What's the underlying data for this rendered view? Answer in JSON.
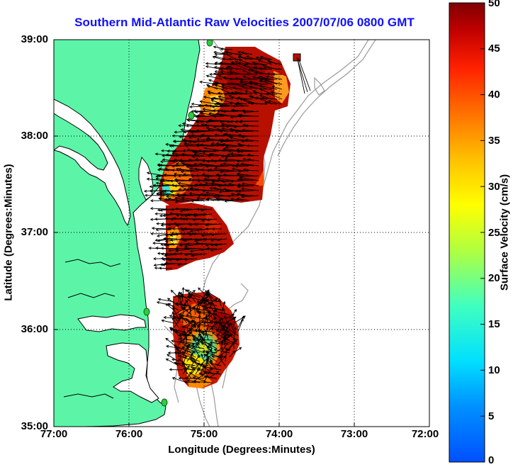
{
  "title": "Southern Mid-Atlantic Raw Velocities 2007/07/06 0800 GMT",
  "axes": {
    "xlabel": "Longitude (Degrees:Minutes)",
    "ylabel": "Latitude (Degrees:Minutes)",
    "x_ticks": [
      "77:00",
      "76:00",
      "75:00",
      "74:00",
      "73:00",
      "72:00"
    ],
    "y_ticks": [
      "39:00",
      "38:00",
      "37:00",
      "36:00",
      "35:00"
    ],
    "xlim": [
      -77,
      -72
    ],
    "ylim": [
      35,
      39
    ],
    "grid": "dotted"
  },
  "colorbar": {
    "label": "Surface Velocity (cm/s)",
    "ticks": [
      "50",
      "45",
      "40",
      "35",
      "30",
      "25",
      "20",
      "15",
      "10",
      "5",
      "0"
    ],
    "range": [
      0,
      50
    ],
    "colormap": "jet"
  },
  "colors": {
    "land": "#5cf5a8",
    "coast": "#000000",
    "isobath": "#9a9a9a",
    "title": "#1010ff",
    "station": "#2ecc40"
  }
}
